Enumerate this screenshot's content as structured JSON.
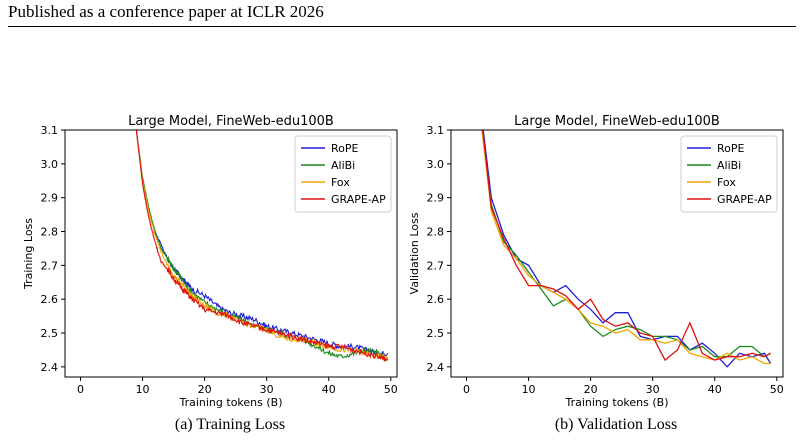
{
  "page": {
    "header": "Published as a conference paper at ICLR 2026",
    "captions": [
      "(a) Training Loss",
      "(b) Validation Loss"
    ]
  },
  "colors": {
    "RoPE": "#1f1fd6",
    "AliBi": "#1a8a1a",
    "Fox": "#f0a500",
    "GRAPE-AP": "#e01010"
  },
  "chart_data": [
    {
      "type": "line",
      "title": "Large Model, FineWeb-edu100B",
      "xlabel": "Training tokens (B)",
      "ylabel": "Training Loss",
      "xlim": [
        -2.5,
        51
      ],
      "ylim": [
        2.37,
        3.1
      ],
      "xticks": [
        0,
        10,
        20,
        30,
        40,
        50
      ],
      "yticks": [
        2.4,
        2.5,
        2.6,
        2.7,
        2.8,
        2.9,
        3.0,
        3.1
      ],
      "legend": "top-right",
      "grid": false,
      "noisy": true,
      "series": [
        {
          "name": "RoPE",
          "x": [
            9,
            10,
            11,
            12,
            13,
            14,
            15,
            16,
            17,
            18,
            20,
            22,
            24,
            26,
            28,
            30,
            32,
            34,
            36,
            38,
            40,
            42,
            44,
            46,
            48,
            49.5
          ],
          "y": [
            3.1,
            2.95,
            2.86,
            2.8,
            2.76,
            2.72,
            2.69,
            2.67,
            2.65,
            2.63,
            2.61,
            2.58,
            2.56,
            2.55,
            2.54,
            2.52,
            2.51,
            2.5,
            2.49,
            2.48,
            2.47,
            2.46,
            2.46,
            2.45,
            2.44,
            2.44
          ]
        },
        {
          "name": "AliBi",
          "x": [
            9,
            10,
            11,
            12,
            13,
            14,
            15,
            16,
            17,
            18,
            20,
            22,
            24,
            26,
            28,
            30,
            32,
            34,
            36,
            38,
            40,
            42,
            44,
            46,
            48,
            49.5
          ],
          "y": [
            3.1,
            2.96,
            2.87,
            2.8,
            2.75,
            2.72,
            2.69,
            2.67,
            2.64,
            2.62,
            2.59,
            2.57,
            2.55,
            2.54,
            2.52,
            2.51,
            2.5,
            2.49,
            2.48,
            2.46,
            2.44,
            2.43,
            2.44,
            2.45,
            2.44,
            2.42
          ]
        },
        {
          "name": "Fox",
          "x": [
            9,
            10,
            11,
            12,
            13,
            14,
            15,
            16,
            17,
            18,
            20,
            22,
            24,
            26,
            28,
            30,
            32,
            34,
            36,
            38,
            40,
            42,
            44,
            46,
            48,
            49.5
          ],
          "y": [
            3.1,
            2.95,
            2.86,
            2.79,
            2.74,
            2.7,
            2.67,
            2.65,
            2.63,
            2.61,
            2.58,
            2.56,
            2.55,
            2.53,
            2.52,
            2.51,
            2.49,
            2.48,
            2.48,
            2.47,
            2.46,
            2.45,
            2.45,
            2.44,
            2.43,
            2.43
          ]
        },
        {
          "name": "GRAPE-AP",
          "x": [
            9,
            10,
            11,
            12,
            13,
            14,
            15,
            16,
            17,
            18,
            20,
            22,
            24,
            26,
            28,
            30,
            32,
            34,
            36,
            38,
            40,
            42,
            44,
            46,
            48,
            49.5
          ],
          "y": [
            3.1,
            2.94,
            2.84,
            2.77,
            2.71,
            2.69,
            2.66,
            2.64,
            2.62,
            2.6,
            2.57,
            2.56,
            2.55,
            2.53,
            2.52,
            2.51,
            2.5,
            2.49,
            2.48,
            2.47,
            2.46,
            2.46,
            2.45,
            2.44,
            2.43,
            2.42
          ]
        }
      ]
    },
    {
      "type": "line",
      "title": "Large Model, FineWeb-edu100B",
      "xlabel": "Training tokens (B)",
      "ylabel": "Validation Loss",
      "xlim": [
        -2.5,
        51
      ],
      "ylim": [
        2.37,
        3.1
      ],
      "xticks": [
        0,
        10,
        20,
        30,
        40,
        50
      ],
      "yticks": [
        2.4,
        2.5,
        2.6,
        2.7,
        2.8,
        2.9,
        3.0,
        3.1
      ],
      "legend": "top-right",
      "grid": false,
      "noisy": false,
      "series": [
        {
          "name": "RoPE",
          "x": [
            2.5,
            4,
            6,
            8,
            10,
            12,
            14,
            16,
            18,
            20,
            22,
            24,
            26,
            28,
            30,
            32,
            34,
            36,
            38,
            40,
            42,
            44,
            46,
            48,
            49
          ],
          "y": [
            3.13,
            2.9,
            2.79,
            2.72,
            2.7,
            2.64,
            2.62,
            2.64,
            2.6,
            2.57,
            2.53,
            2.56,
            2.56,
            2.49,
            2.48,
            2.49,
            2.49,
            2.45,
            2.47,
            2.44,
            2.4,
            2.44,
            2.43,
            2.44,
            2.41
          ]
        },
        {
          "name": "AliBi",
          "x": [
            2.5,
            4,
            6,
            8,
            10,
            12,
            14,
            16,
            18,
            20,
            22,
            24,
            26,
            28,
            30,
            32,
            34,
            36,
            38,
            40,
            42,
            44,
            46,
            48,
            49
          ],
          "y": [
            3.1,
            2.88,
            2.77,
            2.73,
            2.68,
            2.63,
            2.58,
            2.6,
            2.57,
            2.52,
            2.49,
            2.51,
            2.52,
            2.51,
            2.49,
            2.49,
            2.48,
            2.45,
            2.46,
            2.43,
            2.43,
            2.46,
            2.46,
            2.43,
            2.44
          ]
        },
        {
          "name": "Fox",
          "x": [
            2.5,
            4,
            6,
            8,
            10,
            12,
            14,
            16,
            18,
            20,
            22,
            24,
            26,
            28,
            30,
            32,
            34,
            36,
            38,
            40,
            42,
            44,
            46,
            48,
            49
          ],
          "y": [
            3.1,
            2.86,
            2.76,
            2.72,
            2.67,
            2.64,
            2.62,
            2.6,
            2.57,
            2.53,
            2.52,
            2.5,
            2.51,
            2.48,
            2.48,
            2.47,
            2.48,
            2.44,
            2.43,
            2.42,
            2.44,
            2.42,
            2.43,
            2.41,
            2.41
          ]
        },
        {
          "name": "GRAPE-AP",
          "x": [
            2.5,
            4,
            6,
            8,
            10,
            12,
            14,
            16,
            18,
            20,
            22,
            24,
            26,
            28,
            30,
            32,
            34,
            36,
            38,
            40,
            42,
            44,
            46,
            48,
            49
          ],
          "y": [
            3.12,
            2.87,
            2.78,
            2.7,
            2.64,
            2.64,
            2.63,
            2.61,
            2.57,
            2.6,
            2.54,
            2.52,
            2.53,
            2.5,
            2.49,
            2.42,
            2.45,
            2.53,
            2.44,
            2.42,
            2.43,
            2.43,
            2.44,
            2.43,
            2.44
          ]
        }
      ]
    }
  ]
}
